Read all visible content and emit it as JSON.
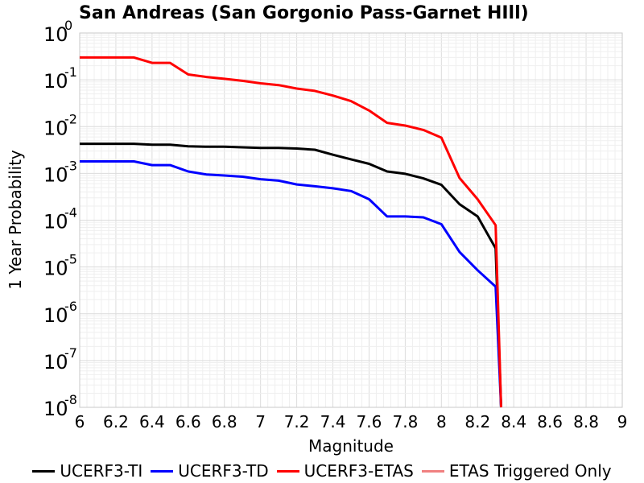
{
  "chart_data": {
    "type": "line",
    "title": "San Andreas (San Gorgonio Pass-Garnet HIll)",
    "xlabel": "Magnitude",
    "ylabel": "1 Year Probability",
    "xlim": [
      6,
      9
    ],
    "ylim": [
      1e-08,
      1
    ],
    "y_scale": "log",
    "grid": true,
    "legend_position": "bottom",
    "x_ticks": [
      "6",
      "6.2",
      "6.4",
      "6.6",
      "6.8",
      "7",
      "7.2",
      "7.4",
      "7.6",
      "7.8",
      "8",
      "8.2",
      "8.4",
      "8.6",
      "8.8",
      "9"
    ],
    "y_ticks": [
      {
        "base": "10",
        "exp": "0"
      },
      {
        "base": "10",
        "exp": "-1"
      },
      {
        "base": "10",
        "exp": "-2"
      },
      {
        "base": "10",
        "exp": "-3"
      },
      {
        "base": "10",
        "exp": "-4"
      },
      {
        "base": "10",
        "exp": "-5"
      },
      {
        "base": "10",
        "exp": "-6"
      },
      {
        "base": "10",
        "exp": "-7"
      },
      {
        "base": "10",
        "exp": "-8"
      }
    ],
    "series": [
      {
        "name": "UCERF3-TI",
        "color": "#000000",
        "x": [
          6.0,
          6.1,
          6.2,
          6.3,
          6.4,
          6.5,
          6.6,
          6.7,
          6.8,
          6.9,
          7.0,
          7.1,
          7.2,
          7.3,
          7.4,
          7.5,
          7.6,
          7.7,
          7.8,
          7.9,
          8.0,
          8.1,
          8.2,
          8.3,
          8.33
        ],
        "y": [
          0.0043,
          0.0043,
          0.0043,
          0.0043,
          0.0041,
          0.0041,
          0.0038,
          0.0037,
          0.0037,
          0.0036,
          0.0035,
          0.0035,
          0.0034,
          0.0032,
          0.0025,
          0.002,
          0.0016,
          0.0011,
          0.00098,
          0.00078,
          0.00057,
          0.00022,
          0.00012,
          2.5e-05,
          1e-08
        ]
      },
      {
        "name": "UCERF3-TD",
        "color": "#0000ff",
        "x": [
          6.0,
          6.1,
          6.2,
          6.3,
          6.4,
          6.5,
          6.6,
          6.7,
          6.8,
          6.9,
          7.0,
          7.1,
          7.2,
          7.3,
          7.4,
          7.5,
          7.6,
          7.7,
          7.8,
          7.9,
          8.0,
          8.1,
          8.2,
          8.3,
          8.33
        ],
        "y": [
          0.0018,
          0.0018,
          0.0018,
          0.0018,
          0.0015,
          0.0015,
          0.0011,
          0.00095,
          0.0009,
          0.00085,
          0.00075,
          0.0007,
          0.00058,
          0.00053,
          0.00048,
          0.00042,
          0.00028,
          0.00012,
          0.00012,
          0.000115,
          8.2e-05,
          2.1e-05,
          8.5e-06,
          3.8e-06,
          1e-08
        ]
      },
      {
        "name": "UCERF3-ETAS",
        "color": "#ff0000",
        "x": [
          6.0,
          6.1,
          6.2,
          6.3,
          6.4,
          6.5,
          6.6,
          6.7,
          6.8,
          6.9,
          7.0,
          7.1,
          7.2,
          7.3,
          7.4,
          7.5,
          7.6,
          7.7,
          7.8,
          7.9,
          8.0,
          8.1,
          8.2,
          8.3,
          8.33
        ],
        "y": [
          0.3,
          0.3,
          0.3,
          0.3,
          0.23,
          0.23,
          0.13,
          0.115,
          0.105,
          0.095,
          0.084,
          0.077,
          0.065,
          0.058,
          0.046,
          0.035,
          0.022,
          0.012,
          0.0105,
          0.0085,
          0.0058,
          0.0008,
          0.00028,
          7.8e-05,
          1e-08
        ]
      },
      {
        "name": "ETAS Triggered Only",
        "color": "#f08080",
        "x": [],
        "y": []
      }
    ]
  }
}
